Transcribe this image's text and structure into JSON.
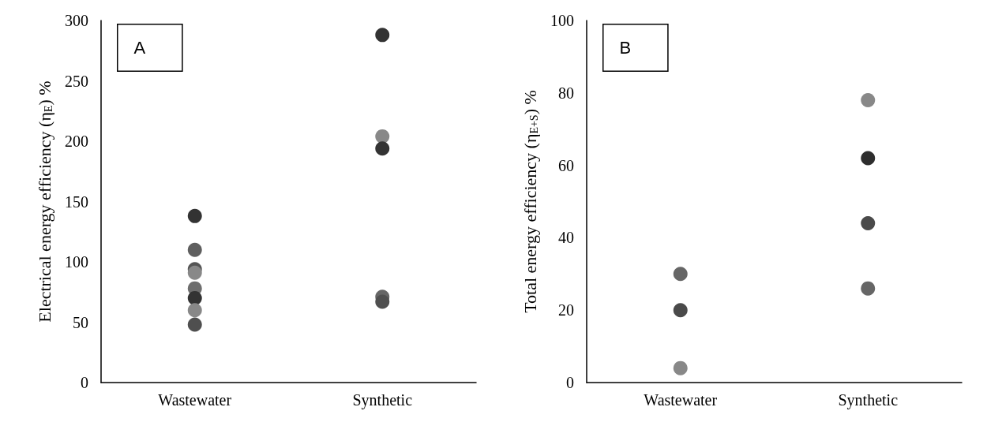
{
  "chart_data": [
    {
      "type": "scatter",
      "ylabel": "Electrical energy efficiency (η$_{E}$) %",
      "categories": [
        "Wastewater",
        "Synthetic"
      ],
      "ylim": [
        0,
        300
      ],
      "yticks": [
        0,
        50,
        100,
        150,
        200,
        250,
        300
      ],
      "marker": "circle",
      "annotations": [
        "A"
      ],
      "series": [
        {
          "x": [
            "Wastewater",
            "Wastewater",
            "Wastewater",
            "Wastewater",
            "Wastewater",
            "Wastewater",
            "Wastewater",
            "Wastewater",
            "Synthetic",
            "Synthetic",
            "Synthetic",
            "Synthetic",
            "Synthetic"
          ],
          "values": [
            138,
            110,
            94,
            91,
            78,
            70,
            60,
            48,
            288,
            204,
            194,
            71,
            67
          ],
          "colors": [
            "#333333",
            "#5f5f5f",
            "#555555",
            "#888888",
            "#6e6e6e",
            "#333333",
            "#888888",
            "#4f4f4f",
            "#333333",
            "#888888",
            "#333333",
            "#666666",
            "#4f4f4f"
          ]
        }
      ]
    },
    {
      "type": "scatter",
      "ylabel": "Total energy efficiency (η$_{E+S}$) %",
      "categories": [
        "Wastewater",
        "Synthetic"
      ],
      "ylim": [
        0,
        100
      ],
      "yticks": [
        0,
        20,
        40,
        60,
        80,
        100
      ],
      "marker": "circle",
      "annotations": [
        "B"
      ],
      "series": [
        {
          "x": [
            "Wastewater",
            "Wastewater",
            "Wastewater",
            "Synthetic",
            "Synthetic",
            "Synthetic",
            "Synthetic"
          ],
          "values": [
            30,
            20,
            4,
            78,
            62,
            44,
            26
          ],
          "colors": [
            "#666666",
            "#4a4a4a",
            "#888888",
            "#888888",
            "#2e2e2e",
            "#4a4a4a",
            "#666666"
          ]
        }
      ]
    }
  ]
}
